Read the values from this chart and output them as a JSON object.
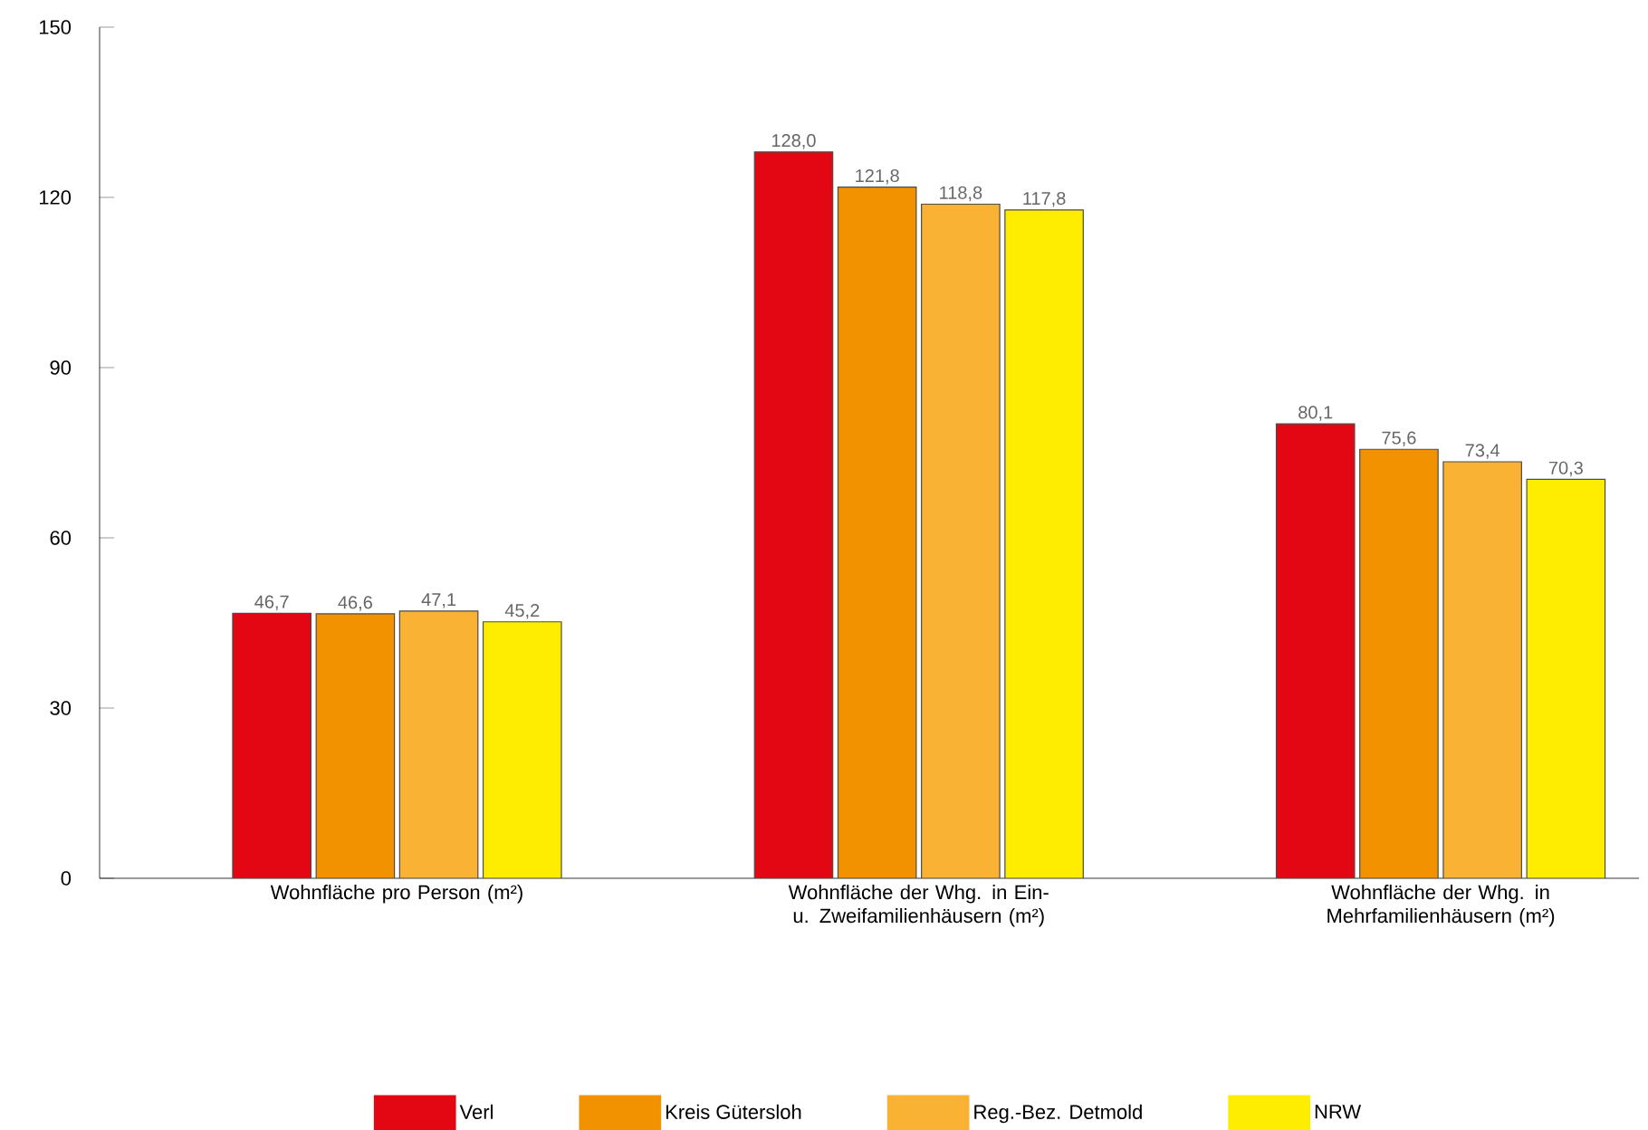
{
  "chart_data": {
    "type": "bar",
    "categories": [
      "Wohnfläche pro Person (m²)",
      "Wohnfläche der Whg. in Ein- u. Zweifamilienhäusern (m²)",
      "Wohnfläche der Whg. in Mehrfamilienhäusern (m²)"
    ],
    "series": [
      {
        "name": "Verl",
        "color": "#e30613",
        "values": [
          46.7,
          128.0,
          80.1
        ],
        "value_labels": [
          "46,7",
          "128,0",
          "80,1"
        ]
      },
      {
        "name": "Kreis Gütersloh",
        "color": "#f39200",
        "values": [
          46.6,
          121.8,
          75.6
        ],
        "value_labels": [
          "46,6",
          "121,8",
          "75,6"
        ]
      },
      {
        "name": "Reg.-Bez. Detmold",
        "color": "#f9b233",
        "values": [
          47.1,
          118.8,
          73.4
        ],
        "value_labels": [
          "47,1",
          "118,8",
          "73,4"
        ]
      },
      {
        "name": "NRW",
        "color": "#ffed00",
        "values": [
          45.2,
          117.8,
          70.3
        ],
        "value_labels": [
          "45,2",
          "117,8",
          "70,3"
        ]
      }
    ],
    "ylim": [
      0,
      150
    ],
    "yticks": [
      0,
      30,
      60,
      90,
      120,
      150
    ],
    "grid": false,
    "legend": "bottom"
  }
}
